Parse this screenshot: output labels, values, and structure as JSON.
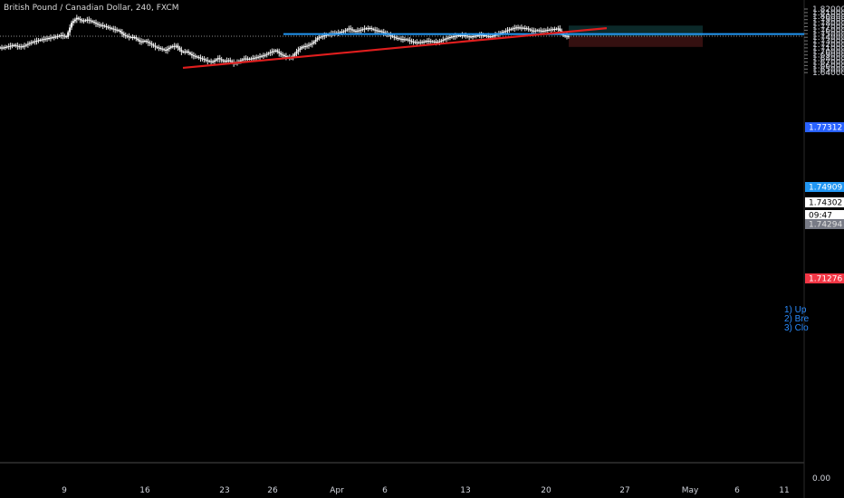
{
  "header": {
    "title": "British Pound / Canadian Dollar, 240, FXCM"
  },
  "chart_data": {
    "type": "candlestick",
    "title": "British Pound / Canadian Dollar, 240, FXCM",
    "y_ticks": [
      "1.82000",
      "1.81000",
      "1.80000",
      "1.79000",
      "1.78000",
      "1.77000",
      "1.76000",
      "1.75000",
      "1.74000",
      "1.73000",
      "1.72000",
      "1.71000",
      "1.70000",
      "1.69000",
      "1.68000",
      "1.67000",
      "1.66000",
      "1.65000",
      "1.64000"
    ],
    "x_ticks": [
      "9",
      "16",
      "23",
      "26",
      "Apr",
      "6",
      "13",
      "20",
      "27",
      "May",
      "6",
      "11"
    ],
    "ylim": [
      1.64,
      1.82
    ],
    "lower_pane_tick": "0.00",
    "price_badges": [
      {
        "label": "1.77312",
        "value": 1.77312,
        "color": "#2962ff"
      },
      {
        "label": "1.74909",
        "value": 1.74909,
        "color": "#2196f3"
      },
      {
        "label": "1.74302",
        "value": 1.74302,
        "color": "#ffffff"
      },
      {
        "label": "09:47",
        "value": 1.74302,
        "color": "#ffffff"
      },
      {
        "label": "1.74294",
        "value": 1.74294,
        "color": "#787b86"
      },
      {
        "label": "1.71276",
        "value": 1.71276,
        "color": "#f23645"
      }
    ],
    "current_price": 1.74302,
    "resistance_level": 1.74909,
    "position": {
      "entry": 1.74302,
      "target": 1.77312,
      "stop": 1.71276
    },
    "trendline": {
      "from": [
        "Mar 19",
        1.6535
      ],
      "to": [
        "Apr 24",
        1.7659
      ],
      "color": "#e01e1e"
    },
    "zone": {
      "top": 1.7491,
      "bottom": 1.7467,
      "color": "#c8b429"
    },
    "annotations": [
      "1) Up",
      "2) Bre",
      "3) Clo"
    ],
    "closes": [
      1.711,
      1.715,
      1.718,
      1.713,
      1.716,
      1.724,
      1.729,
      1.733,
      1.736,
      1.739,
      1.742,
      1.746,
      1.741,
      1.781,
      1.795,
      1.786,
      1.79,
      1.784,
      1.776,
      1.773,
      1.768,
      1.763,
      1.759,
      1.746,
      1.741,
      1.74,
      1.728,
      1.73,
      1.722,
      1.713,
      1.708,
      1.703,
      1.714,
      1.716,
      1.699,
      1.7,
      1.689,
      1.684,
      1.679,
      1.673,
      1.671,
      1.681,
      1.672,
      1.675,
      1.666,
      1.672,
      1.68,
      1.679,
      1.682,
      1.686,
      1.69,
      1.698,
      1.703,
      1.691,
      1.685,
      1.682,
      1.7,
      1.713,
      1.716,
      1.723,
      1.738,
      1.744,
      1.748,
      1.752,
      1.753,
      1.757,
      1.765,
      1.757,
      1.76,
      1.765,
      1.766,
      1.76,
      1.757,
      1.751,
      1.744,
      1.738,
      1.735,
      1.734,
      1.728,
      1.725,
      1.727,
      1.73,
      1.728,
      1.726,
      1.733,
      1.739,
      1.743,
      1.746,
      1.746,
      1.741,
      1.744,
      1.747,
      1.745,
      1.741,
      1.747,
      1.753,
      1.758,
      1.764,
      1.768,
      1.767,
      1.765,
      1.758,
      1.76,
      1.758,
      1.761,
      1.763,
      1.765,
      1.745,
      1.743
    ]
  }
}
